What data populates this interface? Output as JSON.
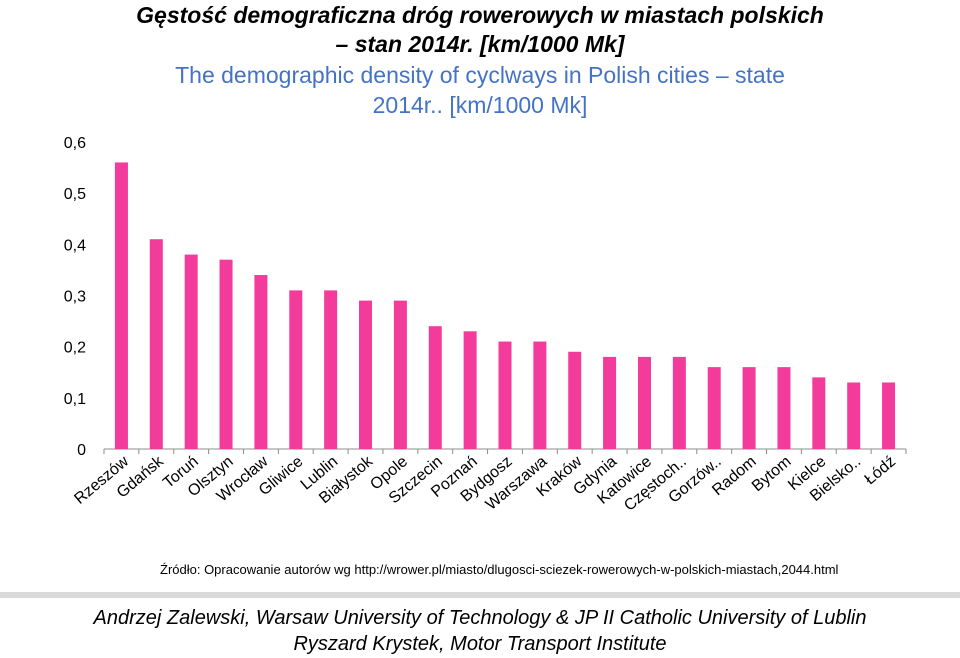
{
  "colors": {
    "bar": "#F23B9B",
    "title_en": "#4473C6",
    "axis": "#8C8C8C",
    "grid": "#D9D9D9",
    "divider": "#D9D9D9"
  },
  "header": {
    "title_pl_line1": "Gęstość demograficzna dróg rowerowych w miastach polskich",
    "title_pl_line2": "– stan 2014r. [km/1000 Mk]",
    "title_en_line1": "The demographic density of cyclways in Polish cities – state",
    "title_en_line2": "2014r.. [km/1000 Mk]"
  },
  "chart_data": {
    "type": "bar",
    "title": "Gęstość demograficzna dróg rowerowych w miastach polskich – stan 2014r. [km/1000 Mk]",
    "categories": [
      "Rzeszów",
      "Gdańsk",
      "Toruń",
      "Olsztyn",
      "Wrocław",
      "Gliwice",
      "Lublin",
      "Białystok",
      "Opole",
      "Szczecin",
      "Poznań",
      "Bydgosz",
      "Warszawa",
      "Kraków",
      "Gdynia",
      "Katowice",
      "Częstoch..",
      "Gorzów..",
      "Radom",
      "Bytom",
      "Kielce",
      "Bielsko..",
      "Łódź"
    ],
    "values": [
      0.56,
      0.41,
      0.38,
      0.37,
      0.34,
      0.31,
      0.31,
      0.29,
      0.29,
      0.24,
      0.23,
      0.21,
      0.21,
      0.19,
      0.18,
      0.18,
      0.18,
      0.16,
      0.16,
      0.16,
      0.14,
      0.13,
      0.13
    ],
    "ylim": [
      0,
      0.6
    ],
    "yticks": [
      0,
      0.1,
      0.2,
      0.3,
      0.4,
      0.5,
      0.6
    ],
    "ytick_labels": [
      "0",
      "0,1",
      "0,2",
      "0,3",
      "0,4",
      "0,5",
      "0,6"
    ],
    "xlabel": "",
    "ylabel": "",
    "grid": false,
    "legend": "none"
  },
  "source_text": "Źródło: Opracowanie autorów wg http://wrower.pl/miasto/dlugosci-sciezek-rowerowych-w-polskich-miastach,2044.html",
  "footer": {
    "line1": "Andrzej Zalewski, Warsaw University of Technology & JP II Catholic University of Lublin",
    "line2": "Ryszard Krystek, Motor Transport Institute"
  }
}
